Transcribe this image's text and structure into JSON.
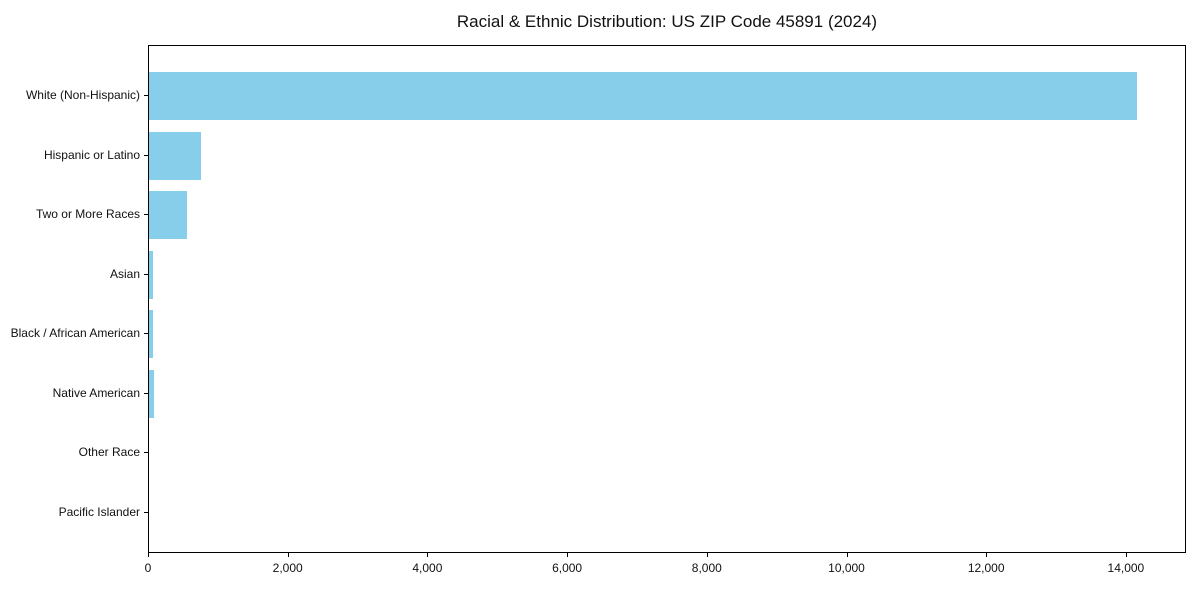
{
  "chart_data": {
    "type": "bar",
    "orientation": "horizontal",
    "title": "Racial & Ethnic Distribution: US ZIP Code 45891 (2024)",
    "categories": [
      "White (Non-Hispanic)",
      "Hispanic or Latino",
      "Two or More Races",
      "Asian",
      "Black / African American",
      "Native American",
      "Other Race",
      "Pacific Islander"
    ],
    "values": [
      14150,
      740,
      540,
      50,
      55,
      70,
      0,
      0
    ],
    "xlabel": "",
    "ylabel": "",
    "xlim": [
      0,
      14860
    ],
    "xticks": [
      0,
      2000,
      4000,
      6000,
      8000,
      10000,
      12000,
      14000
    ],
    "xtick_labels": [
      "0",
      "2,000",
      "4,000",
      "6,000",
      "8,000",
      "10,000",
      "12,000",
      "14,000"
    ],
    "bar_color": "#87CEEB",
    "frame_color": "#000000",
    "text_color": "#111111",
    "grid": false,
    "legend": null
  }
}
